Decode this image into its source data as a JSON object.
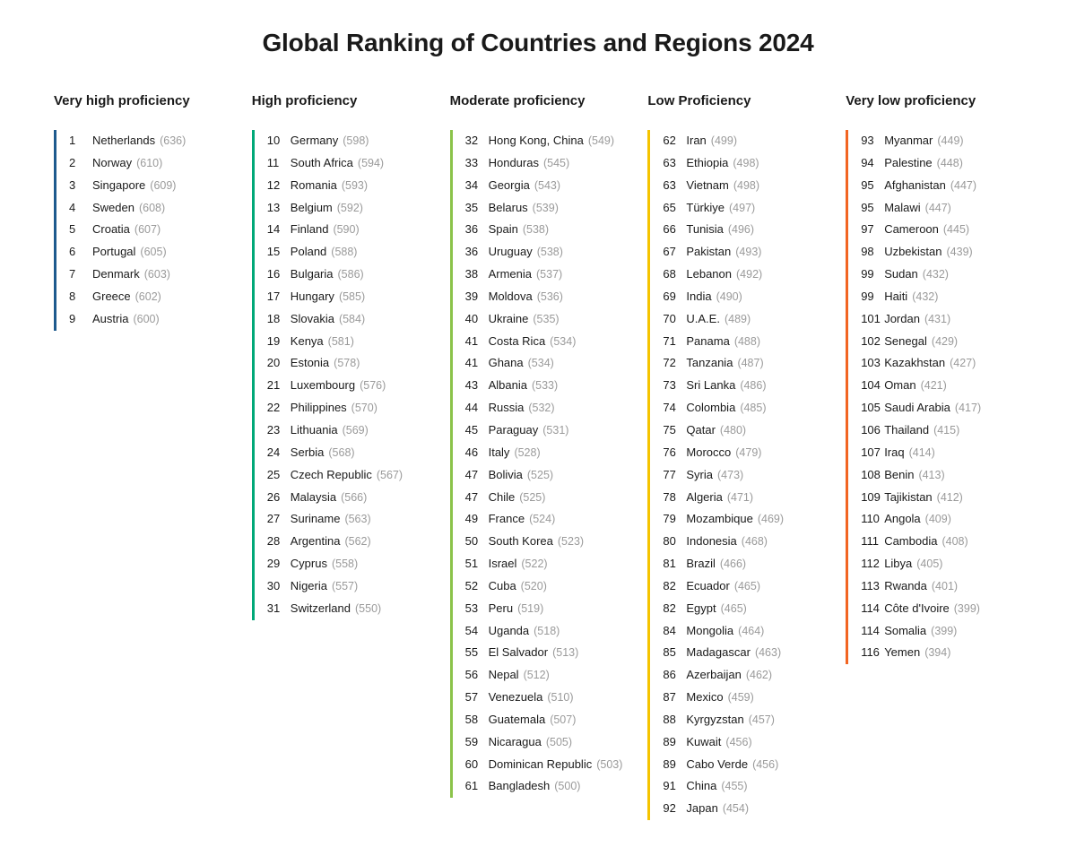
{
  "title": "Global Ranking of Countries and Regions 2024",
  "columns": [
    {
      "header": "Very high proficiency",
      "border_color": "#1e5a8e",
      "items": [
        {
          "rank": "1",
          "country": "Netherlands",
          "score": "636"
        },
        {
          "rank": "2",
          "country": "Norway",
          "score": "610"
        },
        {
          "rank": "3",
          "country": "Singapore",
          "score": "609"
        },
        {
          "rank": "4",
          "country": "Sweden",
          "score": "608"
        },
        {
          "rank": "5",
          "country": "Croatia",
          "score": "607"
        },
        {
          "rank": "6",
          "country": "Portugal",
          "score": "605"
        },
        {
          "rank": "7",
          "country": "Denmark",
          "score": "603"
        },
        {
          "rank": "8",
          "country": "Greece",
          "score": "602"
        },
        {
          "rank": "9",
          "country": "Austria",
          "score": "600"
        }
      ]
    },
    {
      "header": "High proficiency",
      "border_color": "#00a878",
      "items": [
        {
          "rank": "10",
          "country": "Germany",
          "score": "598"
        },
        {
          "rank": "11",
          "country": "South Africa",
          "score": "594"
        },
        {
          "rank": "12",
          "country": "Romania",
          "score": "593"
        },
        {
          "rank": "13",
          "country": "Belgium",
          "score": "592"
        },
        {
          "rank": "14",
          "country": "Finland",
          "score": "590"
        },
        {
          "rank": "15",
          "country": "Poland",
          "score": "588"
        },
        {
          "rank": "16",
          "country": "Bulgaria",
          "score": "586"
        },
        {
          "rank": "17",
          "country": "Hungary",
          "score": "585"
        },
        {
          "rank": "18",
          "country": "Slovakia",
          "score": "584"
        },
        {
          "rank": "19",
          "country": "Kenya",
          "score": "581"
        },
        {
          "rank": "20",
          "country": "Estonia",
          "score": "578"
        },
        {
          "rank": "21",
          "country": "Luxembourg",
          "score": "576"
        },
        {
          "rank": "22",
          "country": "Philippines",
          "score": "570"
        },
        {
          "rank": "23",
          "country": "Lithuania",
          "score": "569"
        },
        {
          "rank": "24",
          "country": "Serbia",
          "score": "568"
        },
        {
          "rank": "25",
          "country": "Czech Republic",
          "score": "567"
        },
        {
          "rank": "26",
          "country": "Malaysia",
          "score": "566"
        },
        {
          "rank": "27",
          "country": "Suriname",
          "score": "563"
        },
        {
          "rank": "28",
          "country": "Argentina",
          "score": "562"
        },
        {
          "rank": "29",
          "country": "Cyprus",
          "score": "558"
        },
        {
          "rank": "30",
          "country": "Nigeria",
          "score": "557"
        },
        {
          "rank": "31",
          "country": "Switzerland",
          "score": "550"
        }
      ]
    },
    {
      "header": "Moderate proficiency",
      "border_color": "#8bc34a",
      "items": [
        {
          "rank": "32",
          "country": "Hong Kong, China",
          "score": "549"
        },
        {
          "rank": "33",
          "country": "Honduras",
          "score": "545"
        },
        {
          "rank": "34",
          "country": "Georgia",
          "score": "543"
        },
        {
          "rank": "35",
          "country": "Belarus",
          "score": "539"
        },
        {
          "rank": "36",
          "country": "Spain",
          "score": "538"
        },
        {
          "rank": "36",
          "country": "Uruguay",
          "score": "538"
        },
        {
          "rank": "38",
          "country": "Armenia",
          "score": "537"
        },
        {
          "rank": "39",
          "country": "Moldova",
          "score": "536"
        },
        {
          "rank": "40",
          "country": "Ukraine",
          "score": "535"
        },
        {
          "rank": "41",
          "country": "Costa Rica",
          "score": "534"
        },
        {
          "rank": "41",
          "country": "Ghana",
          "score": "534"
        },
        {
          "rank": "43",
          "country": "Albania",
          "score": "533"
        },
        {
          "rank": "44",
          "country": "Russia",
          "score": "532"
        },
        {
          "rank": "45",
          "country": "Paraguay",
          "score": "531"
        },
        {
          "rank": "46",
          "country": "Italy",
          "score": "528"
        },
        {
          "rank": "47",
          "country": "Bolivia",
          "score": "525"
        },
        {
          "rank": "47",
          "country": "Chile",
          "score": "525"
        },
        {
          "rank": "49",
          "country": "France",
          "score": "524"
        },
        {
          "rank": "50",
          "country": "South Korea",
          "score": "523"
        },
        {
          "rank": "51",
          "country": "Israel",
          "score": "522"
        },
        {
          "rank": "52",
          "country": "Cuba",
          "score": "520"
        },
        {
          "rank": "53",
          "country": "Peru",
          "score": "519"
        },
        {
          "rank": "54",
          "country": "Uganda",
          "score": "518"
        },
        {
          "rank": "55",
          "country": "El Salvador",
          "score": "513"
        },
        {
          "rank": "56",
          "country": "Nepal",
          "score": "512"
        },
        {
          "rank": "57",
          "country": "Venezuela",
          "score": "510"
        },
        {
          "rank": "58",
          "country": "Guatemala",
          "score": "507"
        },
        {
          "rank": "59",
          "country": "Nicaragua",
          "score": "505"
        },
        {
          "rank": "60",
          "country": "Dominican Republic",
          "score": "503"
        },
        {
          "rank": "61",
          "country": "Bangladesh",
          "score": "500"
        }
      ]
    },
    {
      "header": "Low Proficiency",
      "border_color": "#f5c400",
      "items": [
        {
          "rank": "62",
          "country": "Iran",
          "score": "499"
        },
        {
          "rank": "63",
          "country": "Ethiopia",
          "score": "498"
        },
        {
          "rank": "63",
          "country": "Vietnam",
          "score": "498"
        },
        {
          "rank": "65",
          "country": "Türkiye",
          "score": "497"
        },
        {
          "rank": "66",
          "country": "Tunisia",
          "score": "496"
        },
        {
          "rank": "67",
          "country": "Pakistan",
          "score": "493"
        },
        {
          "rank": "68",
          "country": "Lebanon",
          "score": "492"
        },
        {
          "rank": "69",
          "country": "India",
          "score": "490"
        },
        {
          "rank": "70",
          "country": "U.A.E.",
          "score": "489"
        },
        {
          "rank": "71",
          "country": "Panama",
          "score": "488"
        },
        {
          "rank": "72",
          "country": "Tanzania",
          "score": "487"
        },
        {
          "rank": "73",
          "country": "Sri Lanka",
          "score": "486"
        },
        {
          "rank": "74",
          "country": "Colombia",
          "score": "485"
        },
        {
          "rank": "75",
          "country": "Qatar",
          "score": "480"
        },
        {
          "rank": "76",
          "country": "Morocco",
          "score": "479"
        },
        {
          "rank": "77",
          "country": "Syria",
          "score": "473"
        },
        {
          "rank": "78",
          "country": "Algeria",
          "score": "471"
        },
        {
          "rank": "79",
          "country": "Mozambique",
          "score": "469"
        },
        {
          "rank": "80",
          "country": "Indonesia",
          "score": "468"
        },
        {
          "rank": "81",
          "country": "Brazil",
          "score": "466"
        },
        {
          "rank": "82",
          "country": "Ecuador",
          "score": "465"
        },
        {
          "rank": "82",
          "country": "Egypt",
          "score": "465"
        },
        {
          "rank": "84",
          "country": "Mongolia",
          "score": "464"
        },
        {
          "rank": "85",
          "country": "Madagascar",
          "score": "463"
        },
        {
          "rank": "86",
          "country": "Azerbaijan",
          "score": "462"
        },
        {
          "rank": "87",
          "country": "Mexico",
          "score": "459"
        },
        {
          "rank": "88",
          "country": "Kyrgyzstan",
          "score": "457"
        },
        {
          "rank": "89",
          "country": "Kuwait",
          "score": "456"
        },
        {
          "rank": "89",
          "country": "Cabo Verde",
          "score": "456"
        },
        {
          "rank": "91",
          "country": "China",
          "score": "455"
        },
        {
          "rank": "92",
          "country": "Japan",
          "score": "454"
        }
      ]
    },
    {
      "header": "Very low proficiency",
      "border_color": "#f26522",
      "items": [
        {
          "rank": "93",
          "country": "Myanmar",
          "score": "449"
        },
        {
          "rank": "94",
          "country": "Palestine",
          "score": "448"
        },
        {
          "rank": "95",
          "country": "Afghanistan",
          "score": "447"
        },
        {
          "rank": "95",
          "country": "Malawi",
          "score": "447"
        },
        {
          "rank": "97",
          "country": "Cameroon",
          "score": "445"
        },
        {
          "rank": "98",
          "country": "Uzbekistan",
          "score": "439"
        },
        {
          "rank": "99",
          "country": "Sudan",
          "score": "432"
        },
        {
          "rank": "99",
          "country": "Haiti",
          "score": "432"
        },
        {
          "rank": "101",
          "country": "Jordan",
          "score": "431"
        },
        {
          "rank": "102",
          "country": "Senegal",
          "score": "429"
        },
        {
          "rank": "103",
          "country": "Kazakhstan",
          "score": "427"
        },
        {
          "rank": "104",
          "country": "Oman",
          "score": "421"
        },
        {
          "rank": "105",
          "country": "Saudi Arabia",
          "score": "417"
        },
        {
          "rank": "106",
          "country": "Thailand",
          "score": "415"
        },
        {
          "rank": "107",
          "country": "Iraq",
          "score": "414"
        },
        {
          "rank": "108",
          "country": "Benin",
          "score": "413"
        },
        {
          "rank": "109",
          "country": "Tajikistan",
          "score": "412"
        },
        {
          "rank": "110",
          "country": "Angola",
          "score": "409"
        },
        {
          "rank": "111",
          "country": "Cambodia",
          "score": "408"
        },
        {
          "rank": "112",
          "country": "Libya",
          "score": "405"
        },
        {
          "rank": "113",
          "country": "Rwanda",
          "score": "401"
        },
        {
          "rank": "114",
          "country": "Côte d'Ivoire",
          "score": "399"
        },
        {
          "rank": "114",
          "country": "Somalia",
          "score": "399"
        },
        {
          "rank": "116",
          "country": "Yemen",
          "score": "394"
        }
      ]
    }
  ]
}
